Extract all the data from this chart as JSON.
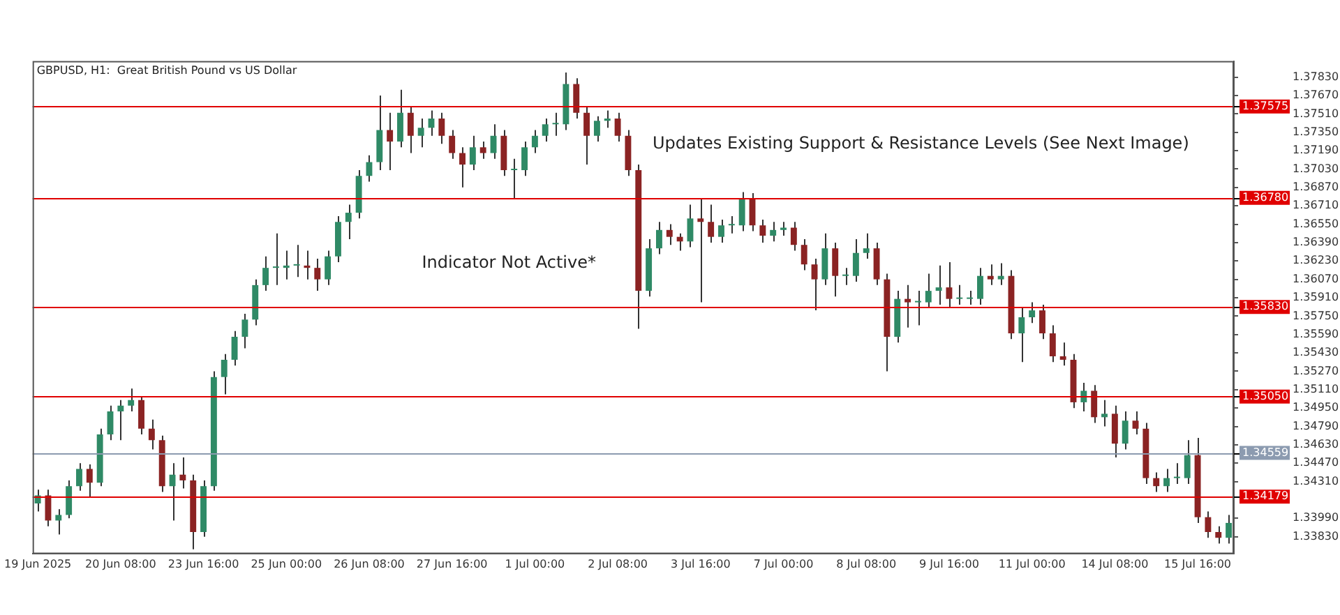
{
  "chart_data": {
    "type": "candlestick",
    "title": "GBPUSD, H1:  Great British Pound vs US Dollar",
    "annotations": [
      "Indicator Not Active*",
      "Updates Existing Support & Resistance Levels (See Next Image)"
    ],
    "categories": [
      "19 Jun 2025",
      null,
      null,
      null,
      null,
      null,
      null,
      null,
      "20 Jun 08:00",
      null,
      null,
      null,
      null,
      null,
      null,
      null,
      "23 Jun 16:00",
      null,
      null,
      null,
      null,
      null,
      null,
      null,
      "25 Jun 00:00",
      null,
      null,
      null,
      null,
      null,
      null,
      null,
      "26 Jun 08:00",
      null,
      null,
      null,
      null,
      null,
      null,
      null,
      "27 Jun 16:00",
      null,
      null,
      null,
      null,
      null,
      null,
      null,
      "1 Jul 00:00",
      null,
      null,
      null,
      null,
      null,
      null,
      null,
      "2 Jul 08:00",
      null,
      null,
      null,
      null,
      null,
      null,
      null,
      "3 Jul 16:00",
      null,
      null,
      null,
      null,
      null,
      null,
      null,
      "7 Jul 00:00",
      null,
      null,
      null,
      null,
      null,
      null,
      null,
      "8 Jul 08:00",
      null,
      null,
      null,
      null,
      null,
      null,
      null,
      "9 Jul 16:00",
      null,
      null,
      null,
      null,
      null,
      null,
      null,
      "11 Jul 00:00",
      null,
      null,
      null,
      null,
      null,
      null,
      null,
      "14 Jul 08:00",
      null,
      null,
      null,
      null,
      null,
      null,
      null,
      "15 Jul 16:00",
      null,
      null,
      null
    ],
    "ohlc": [
      [
        1.3412,
        1.3424,
        1.3405,
        1.3419
      ],
      [
        1.3419,
        1.3424,
        1.3392,
        1.3397
      ],
      [
        1.3397,
        1.3407,
        1.3385,
        1.3402
      ],
      [
        1.3402,
        1.3432,
        1.3399,
        1.3427
      ],
      [
        1.3427,
        1.3447,
        1.3423,
        1.3442
      ],
      [
        1.3442,
        1.3446,
        1.3417,
        1.343
      ],
      [
        1.343,
        1.3477,
        1.3427,
        1.3472
      ],
      [
        1.3472,
        1.3497,
        1.3467,
        1.3492
      ],
      [
        1.3492,
        1.3502,
        1.3467,
        1.3497
      ],
      [
        1.3497,
        1.3512,
        1.3492,
        1.3502
      ],
      [
        1.3502,
        1.3505,
        1.3472,
        1.3477
      ],
      [
        1.3477,
        1.3485,
        1.3459,
        1.3467
      ],
      [
        1.3467,
        1.3471,
        1.3422,
        1.3427
      ],
      [
        1.3427,
        1.3447,
        1.3397,
        1.3437
      ],
      [
        1.3437,
        1.3452,
        1.3425,
        1.3432
      ],
      [
        1.3432,
        1.3437,
        1.3372,
        1.3387
      ],
      [
        1.3387,
        1.3432,
        1.3383,
        1.3427
      ],
      [
        1.3427,
        1.3527,
        1.3423,
        1.3522
      ],
      [
        1.3522,
        1.3542,
        1.3507,
        1.3537
      ],
      [
        1.3537,
        1.3562,
        1.3532,
        1.3557
      ],
      [
        1.3557,
        1.3577,
        1.3547,
        1.3572
      ],
      [
        1.3572,
        1.3607,
        1.3567,
        1.3602
      ],
      [
        1.3602,
        1.3627,
        1.3597,
        1.3617
      ],
      [
        1.3617,
        1.3647,
        1.3602,
        1.3617
      ],
      [
        1.3617,
        1.3632,
        1.3607,
        1.3619
      ],
      [
        1.3619,
        1.3637,
        1.3609,
        1.3619
      ],
      [
        1.3619,
        1.3632,
        1.3607,
        1.3617
      ],
      [
        1.3617,
        1.3625,
        1.3597,
        1.3607
      ],
      [
        1.3607,
        1.3632,
        1.3602,
        1.3627
      ],
      [
        1.3627,
        1.3662,
        1.3622,
        1.3657
      ],
      [
        1.3657,
        1.3672,
        1.3642,
        1.3665
      ],
      [
        1.3665,
        1.3702,
        1.366,
        1.3697
      ],
      [
        1.3697,
        1.3715,
        1.3692,
        1.3709
      ],
      [
        1.3709,
        1.3767,
        1.3702,
        1.3737
      ],
      [
        1.3737,
        1.3752,
        1.3702,
        1.3727
      ],
      [
        1.3727,
        1.3772,
        1.3722,
        1.3752
      ],
      [
        1.3752,
        1.3757,
        1.3717,
        1.3732
      ],
      [
        1.3732,
        1.3747,
        1.3722,
        1.3739
      ],
      [
        1.3739,
        1.3754,
        1.3732,
        1.3747
      ],
      [
        1.3747,
        1.3752,
        1.3725,
        1.3732
      ],
      [
        1.3732,
        1.3737,
        1.3712,
        1.3717
      ],
      [
        1.3717,
        1.3722,
        1.3687,
        1.3707
      ],
      [
        1.3707,
        1.3732,
        1.3702,
        1.3722
      ],
      [
        1.3722,
        1.3727,
        1.3712,
        1.3717
      ],
      [
        1.3717,
        1.3742,
        1.3712,
        1.3732
      ],
      [
        1.3732,
        1.3737,
        1.3697,
        1.3702
      ],
      [
        1.3702,
        1.3712,
        1.3677,
        1.3702
      ],
      [
        1.3702,
        1.3727,
        1.3697,
        1.3722
      ],
      [
        1.3722,
        1.3737,
        1.3717,
        1.3732
      ],
      [
        1.3732,
        1.3747,
        1.3727,
        1.3742
      ],
      [
        1.3742,
        1.3752,
        1.3732,
        1.3742
      ],
      [
        1.3742,
        1.3787,
        1.3737,
        1.3777
      ],
      [
        1.3777,
        1.3782,
        1.3747,
        1.3752
      ],
      [
        1.3752,
        1.3757,
        1.3707,
        1.3732
      ],
      [
        1.3732,
        1.3749,
        1.3727,
        1.3745
      ],
      [
        1.3745,
        1.3754,
        1.3739,
        1.3747
      ],
      [
        1.3747,
        1.3752,
        1.3727,
        1.3732
      ],
      [
        1.3732,
        1.3737,
        1.3697,
        1.3702
      ],
      [
        1.3702,
        1.3707,
        1.3564,
        1.3597
      ],
      [
        1.3597,
        1.3642,
        1.3592,
        1.3634
      ],
      [
        1.3634,
        1.3657,
        1.3629,
        1.365
      ],
      [
        1.365,
        1.3655,
        1.3637,
        1.3644
      ],
      [
        1.3644,
        1.3647,
        1.3632,
        1.364
      ],
      [
        1.364,
        1.3672,
        1.3635,
        1.366
      ],
      [
        1.366,
        1.3677,
        1.3587,
        1.3657
      ],
      [
        1.3657,
        1.3672,
        1.3639,
        1.3644
      ],
      [
        1.3644,
        1.3659,
        1.3639,
        1.3654
      ],
      [
        1.3654,
        1.3662,
        1.3647,
        1.3654
      ],
      [
        1.3654,
        1.3683,
        1.3649,
        1.3677
      ],
      [
        1.3677,
        1.3682,
        1.3649,
        1.3654
      ],
      [
        1.3654,
        1.3659,
        1.3639,
        1.3645
      ],
      [
        1.3645,
        1.3657,
        1.364,
        1.365
      ],
      [
        1.365,
        1.3657,
        1.3645,
        1.3652
      ],
      [
        1.3652,
        1.3657,
        1.3632,
        1.3637
      ],
      [
        1.3637,
        1.3642,
        1.3615,
        1.362
      ],
      [
        1.362,
        1.3625,
        1.358,
        1.3607
      ],
      [
        1.3607,
        1.3647,
        1.3602,
        1.3634
      ],
      [
        1.3634,
        1.3639,
        1.3592,
        1.361
      ],
      [
        1.361,
        1.3617,
        1.3602,
        1.361
      ],
      [
        1.361,
        1.3642,
        1.3605,
        1.363
      ],
      [
        1.363,
        1.3647,
        1.3625,
        1.3634
      ],
      [
        1.3634,
        1.3639,
        1.3602,
        1.3607
      ],
      [
        1.3607,
        1.3612,
        1.3527,
        1.3557
      ],
      [
        1.3557,
        1.3597,
        1.3552,
        1.359
      ],
      [
        1.359,
        1.3602,
        1.3565,
        1.3587
      ],
      [
        1.3587,
        1.3597,
        1.3567,
        1.3587
      ],
      [
        1.3587,
        1.3612,
        1.3582,
        1.3597
      ],
      [
        1.3597,
        1.3619,
        1.3585,
        1.36
      ],
      [
        1.36,
        1.3622,
        1.3582,
        1.359
      ],
      [
        1.359,
        1.3602,
        1.3585,
        1.359
      ],
      [
        1.359,
        1.3597,
        1.3585,
        1.359
      ],
      [
        1.359,
        1.3617,
        1.3585,
        1.361
      ],
      [
        1.361,
        1.362,
        1.3602,
        1.3607
      ],
      [
        1.3607,
        1.3621,
        1.3602,
        1.361
      ],
      [
        1.361,
        1.3615,
        1.3555,
        1.356
      ],
      [
        1.356,
        1.3582,
        1.3535,
        1.3574
      ],
      [
        1.3574,
        1.3587,
        1.3569,
        1.358
      ],
      [
        1.358,
        1.3585,
        1.3555,
        1.356
      ],
      [
        1.356,
        1.3567,
        1.3535,
        1.354
      ],
      [
        1.354,
        1.3552,
        1.3532,
        1.3537
      ],
      [
        1.3537,
        1.3542,
        1.3495,
        1.35
      ],
      [
        1.35,
        1.3517,
        1.3492,
        1.351
      ],
      [
        1.351,
        1.3515,
        1.3482,
        1.3487
      ],
      [
        1.3487,
        1.3502,
        1.3479,
        1.349
      ],
      [
        1.349,
        1.3497,
        1.3452,
        1.3464
      ],
      [
        1.3464,
        1.3492,
        1.3459,
        1.3484
      ],
      [
        1.3484,
        1.3492,
        1.3472,
        1.3477
      ],
      [
        1.3477,
        1.3482,
        1.3429,
        1.3434
      ],
      [
        1.3434,
        1.3439,
        1.3422,
        1.3427
      ],
      [
        1.3427,
        1.3442,
        1.3422,
        1.3434
      ],
      [
        1.3434,
        1.3447,
        1.3429,
        1.3434
      ],
      [
        1.3434,
        1.3467,
        1.3429,
        1.3454
      ],
      [
        1.3454,
        1.3469,
        1.3395,
        1.34
      ],
      [
        1.34,
        1.3405,
        1.3382,
        1.3387
      ],
      [
        1.3387,
        1.3392,
        1.3377,
        1.3382
      ],
      [
        1.3382,
        1.3402,
        1.3377,
        1.3395
      ]
    ],
    "ylim": [
      1.3368,
      1.3797
    ],
    "yticks": [
      {
        "value": 1.3383,
        "label": "1.33830"
      },
      {
        "value": 1.3399,
        "label": "1.33990"
      },
      {
        "value": 1.3431,
        "label": "1.34310"
      },
      {
        "value": 1.3447,
        "label": "1.34470"
      },
      {
        "value": 1.3463,
        "label": "1.34630"
      },
      {
        "value": 1.3479,
        "label": "1.34790"
      },
      {
        "value": 1.3495,
        "label": "1.34950"
      },
      {
        "value": 1.3511,
        "label": "1.35110"
      },
      {
        "value": 1.3527,
        "label": "1.35270"
      },
      {
        "value": 1.3543,
        "label": "1.35430"
      },
      {
        "value": 1.3559,
        "label": "1.35590"
      },
      {
        "value": 1.3575,
        "label": "1.35750"
      },
      {
        "value": 1.3591,
        "label": "1.35910"
      },
      {
        "value": 1.3607,
        "label": "1.36070"
      },
      {
        "value": 1.3623,
        "label": "1.36230"
      },
      {
        "value": 1.3639,
        "label": "1.36390"
      },
      {
        "value": 1.3655,
        "label": "1.36550"
      },
      {
        "value": 1.3671,
        "label": "1.36710"
      },
      {
        "value": 1.3687,
        "label": "1.36870"
      },
      {
        "value": 1.3703,
        "label": "1.37030"
      },
      {
        "value": 1.3719,
        "label": "1.37190"
      },
      {
        "value": 1.3735,
        "label": "1.37350"
      },
      {
        "value": 1.3751,
        "label": "1.37510"
      },
      {
        "value": 1.3767,
        "label": "1.37670"
      },
      {
        "value": 1.3783,
        "label": "1.37830"
      }
    ],
    "ref_lines": [
      {
        "axis": "y",
        "value": 1.37575,
        "label": "1.37575",
        "color": "#e00000"
      },
      {
        "axis": "y",
        "value": 1.3678,
        "label": "1.36780",
        "color": "#e00000"
      },
      {
        "axis": "y",
        "value": 1.3583,
        "label": "1.35830",
        "color": "#e00000"
      },
      {
        "axis": "y",
        "value": 1.3505,
        "label": "1.35050",
        "color": "#e00000"
      },
      {
        "axis": "y",
        "value": 1.34559,
        "label": "1.34559",
        "color": "#8c9bb0"
      },
      {
        "axis": "y",
        "value": 1.34179,
        "label": "1.34179",
        "color": "#e00000"
      }
    ]
  }
}
